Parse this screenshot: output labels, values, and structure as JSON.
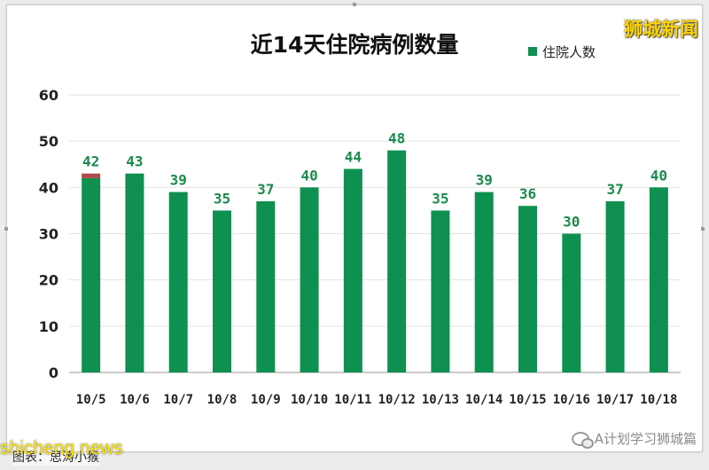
{
  "brand_label": "狮城新闻",
  "footer": {
    "source": "图表：思涛小猴",
    "site": "shicheng.news",
    "channel": "A计划学习狮城篇"
  },
  "chart_data": {
    "type": "bar",
    "title": "近14天住院病例数量",
    "xlabel": "",
    "ylabel": "",
    "categories": [
      "10/5",
      "10/6",
      "10/7",
      "10/8",
      "10/9",
      "10/10",
      "10/11",
      "10/12",
      "10/13",
      "10/14",
      "10/15",
      "10/16",
      "10/17",
      "10/18"
    ],
    "series": [
      {
        "name": "住院人数",
        "color": "#0e9050",
        "values": [
          42,
          43,
          39,
          35,
          37,
          40,
          44,
          48,
          35,
          39,
          36,
          30,
          37,
          40
        ]
      }
    ],
    "extra_segment": {
      "category": "10/5",
      "from": 42,
      "to": 43,
      "color": "#b04a4a"
    },
    "ylim": [
      0,
      60
    ],
    "yticks": [
      0,
      10,
      20,
      30,
      40,
      50,
      60
    ],
    "grid": true,
    "legend_position": "top-right",
    "data_label_color": "#1b8a4c"
  }
}
